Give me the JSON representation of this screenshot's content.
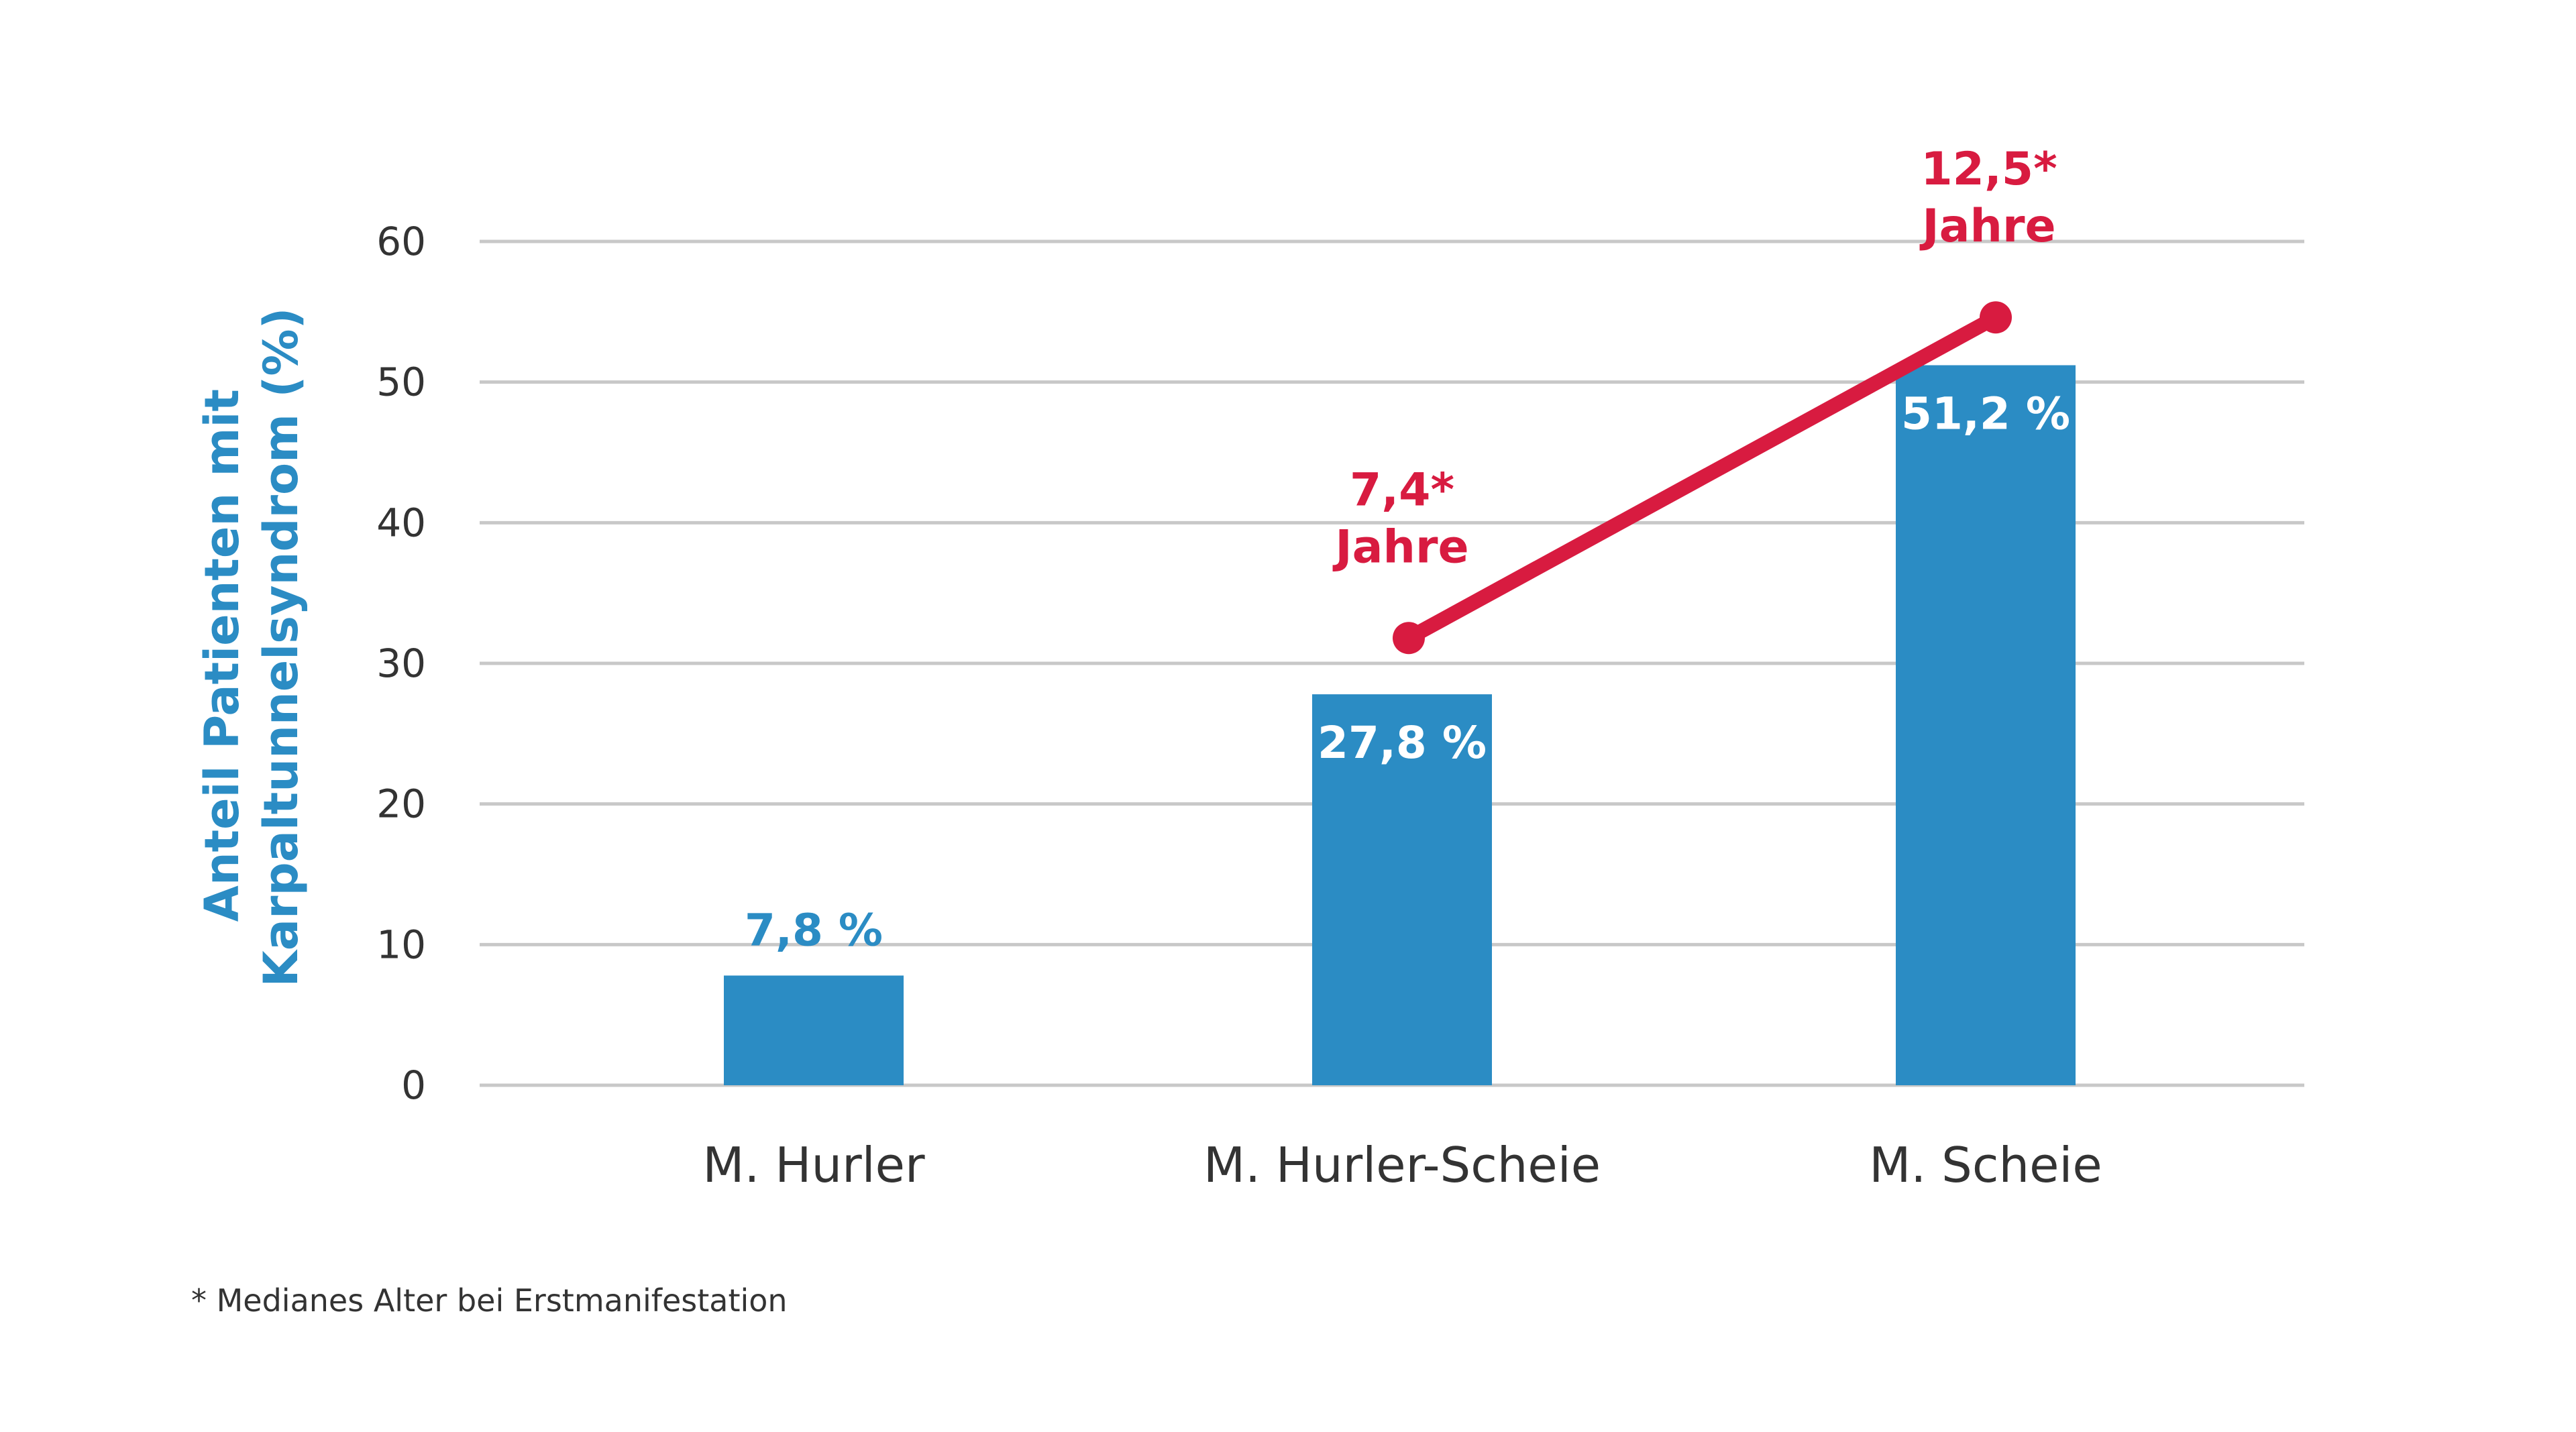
{
  "chart_data": {
    "type": "bar",
    "categories": [
      "M. Hurler",
      "M. Hurler-Scheie",
      "M. Scheie"
    ],
    "ylabel_lines": [
      "Anteil Patienten mit",
      "Karpaltunnelsyndrom (%)"
    ],
    "ylim": [
      0,
      60
    ],
    "yticks": [
      "0",
      "10",
      "20",
      "30",
      "40",
      "50",
      "60"
    ],
    "grid": true,
    "series": [
      {
        "values": [
          7.8,
          27.8,
          51.2
        ],
        "labels": [
          "7,8 %",
          "27,8 %",
          "51,2 %"
        ],
        "color": "#2b8cc4"
      }
    ],
    "line_series": {
      "color": "#d81b40",
      "points": [
        {
          "category": "M. Hurler-Scheie",
          "y": 31.8,
          "label_lines": [
            "7,4*",
            "Jahre"
          ]
        },
        {
          "category": "M. Scheie",
          "y": 54.6,
          "label_lines": [
            "12,5*",
            "Jahre"
          ]
        }
      ]
    },
    "footnote": "* Medianes Alter bei Erstmanifestation"
  }
}
